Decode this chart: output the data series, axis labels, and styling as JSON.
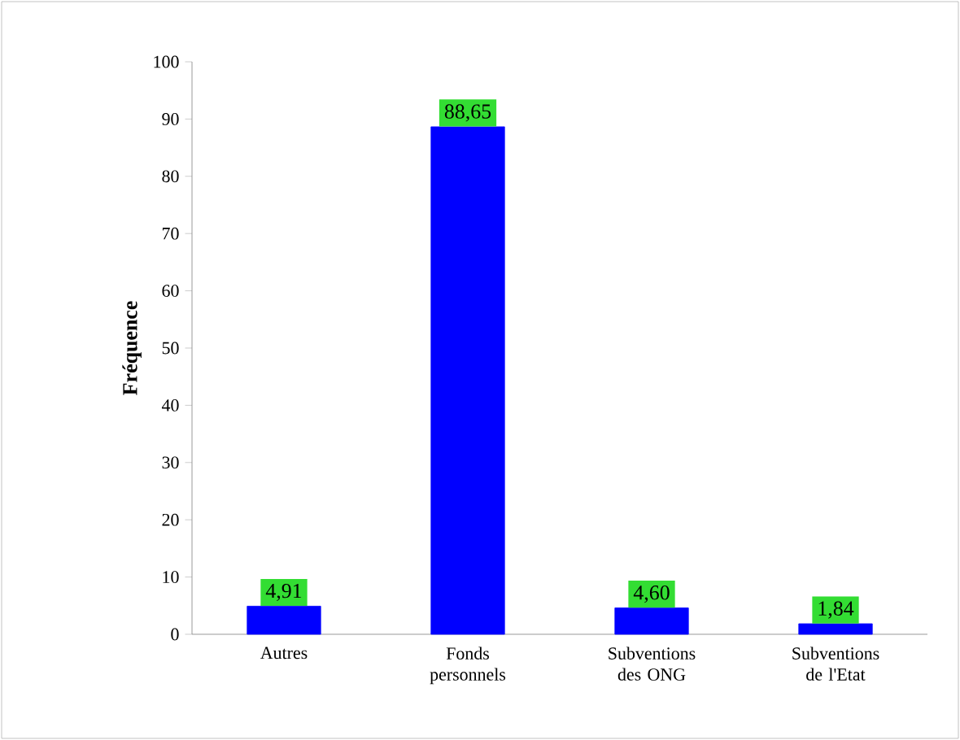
{
  "chart_data": {
    "type": "bar",
    "ylabel": "Fréquence",
    "categories": [
      "Autres",
      "Fonds personnels",
      "Subventions des ONG",
      "Subventions de l'Etat"
    ],
    "values": [
      4.91,
      88.65,
      4.6,
      1.84
    ],
    "value_labels": [
      "4,91",
      "88,65",
      "4,60",
      "1,84"
    ],
    "color": "#0000ff",
    "ylim": [
      0,
      100
    ],
    "yticks": [
      0,
      10,
      20,
      30,
      40,
      50,
      60,
      70,
      80,
      90,
      100
    ],
    "grid": false
  }
}
